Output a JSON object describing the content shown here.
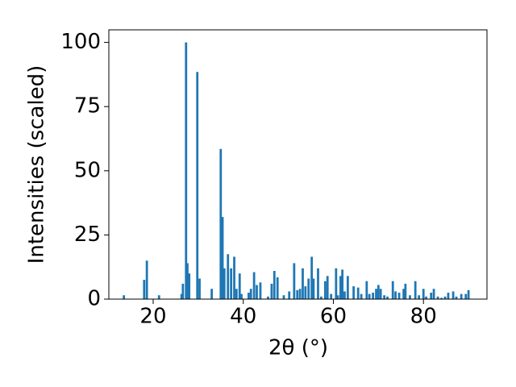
{
  "chart_data": {
    "type": "bar",
    "xlabel": "2θ (°)",
    "ylabel": "Intensities (scaled)",
    "color": "#1f77b4",
    "x": [
      13.5,
      18.0,
      18.6,
      21.3,
      26.3,
      26.6,
      27.3,
      27.6,
      28.0,
      29.8,
      30.3,
      33.0,
      35.0,
      35.4,
      35.8,
      36.6,
      37.3,
      38.0,
      38.5,
      39.2,
      39.6,
      41.2,
      41.7,
      42.4,
      43.0,
      43.8,
      45.5,
      46.3,
      46.9,
      47.6,
      49.0,
      50.2,
      51.3,
      52.0,
      52.6,
      53.2,
      53.8,
      54.5,
      55.2,
      55.6,
      56.6,
      57.3,
      58.2,
      58.7,
      59.5,
      60.6,
      61.0,
      61.6,
      62.0,
      62.5,
      63.2,
      64.5,
      65.5,
      66.2,
      67.4,
      68.0,
      68.8,
      69.5,
      70.0,
      70.5,
      71.3,
      72.0,
      73.2,
      73.8,
      74.6,
      75.6,
      76.0,
      77.0,
      78.2,
      79.0,
      80.0,
      80.6,
      81.7,
      82.3,
      83.2,
      84.0,
      84.8,
      85.5,
      86.6,
      87.3,
      88.4,
      89.4,
      90.0
    ],
    "values": [
      1.5,
      7.5,
      15,
      1.5,
      2,
      6,
      100,
      14,
      10,
      88.5,
      8,
      4,
      58.5,
      32,
      12,
      17.5,
      12,
      16.5,
      4,
      10,
      2,
      2.5,
      4,
      10.5,
      5.5,
      6.5,
      1,
      6,
      11,
      8.5,
      1.5,
      3,
      14,
      3.5,
      4,
      12,
      5,
      8,
      16.5,
      8,
      12,
      1,
      7,
      9,
      2,
      12,
      1.5,
      9,
      11.5,
      3,
      9,
      5,
      4.5,
      2,
      7,
      2,
      2.5,
      4,
      5.5,
      4,
      1.5,
      1,
      7,
      3,
      2.5,
      4,
      6,
      1.5,
      7,
      1.5,
      4,
      1,
      2.5,
      4,
      1,
      0.5,
      1,
      2.5,
      3,
      1,
      2,
      2,
      3.5
    ],
    "xlim": [
      10.16,
      94.1
    ],
    "ylim": [
      0,
      104.9
    ],
    "xticks": [
      20,
      40,
      60,
      80
    ],
    "yticks": [
      0,
      25,
      50,
      75,
      100
    ]
  }
}
